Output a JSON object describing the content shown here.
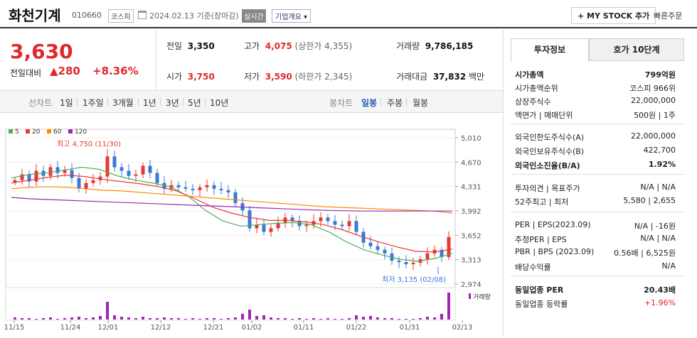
{
  "header": {
    "name": "화천기계",
    "code": "010660",
    "market": "코스피",
    "date": "2024.02.13",
    "basis": "기준(장마감)",
    "realtime": "실시간",
    "company_info": "기업개요 ▾",
    "mystock": "MY STOCK 추가",
    "quick_order": "빠른주문"
  },
  "price": {
    "current": "3,630",
    "change_label": "전일대비",
    "change_value": "▲280",
    "change_pct": "+8.36%",
    "prev_label": "전일",
    "prev": "3,350",
    "high_label": "고가",
    "high": "4,075",
    "upper_label": "(상한가 4,355)",
    "volume_label": "거래량",
    "volume": "9,786,185",
    "open_label": "시가",
    "open": "3,750",
    "low_label": "저가",
    "low": "3,590",
    "lower_label": "(하한가 2,345)",
    "amount_label": "거래대금",
    "amount": "37,832",
    "amount_unit": "백만"
  },
  "periods": {
    "line_label": "선차트",
    "items": [
      "1일",
      "1주일",
      "3개월",
      "1년",
      "3년",
      "5년",
      "10년"
    ],
    "candle_label": "봉차트",
    "candle_items": [
      "일봉",
      "주봉",
      "월봉"
    ]
  },
  "chart_data": {
    "type": "candlestick",
    "legend": [
      "5",
      "20",
      "60",
      "120"
    ],
    "legend_colors": [
      "#4caf50",
      "#e53935",
      "#fb8c00",
      "#9c27b0"
    ],
    "y_ticks": [
      "5,010",
      "4,670",
      "4,331",
      "3,992",
      "3,652",
      "3,313",
      "2,974"
    ],
    "y_range": [
      2974,
      5010
    ],
    "x_labels": [
      "11/15",
      "11/24",
      "12/01",
      "12/12",
      "12/21",
      "01/02",
      "01/11",
      "01/22",
      "01/31",
      "02/13"
    ],
    "high_note": "최고 4,750 (11/30)",
    "low_note": "최저 3,135 (02/08)",
    "volume_label": "거래량"
  },
  "panel": {
    "tab1": "투자정보",
    "tab2": "호가 10단계",
    "rows": [
      {
        "l": "시가총액",
        "v": "799억원",
        "bold": true
      },
      {
        "l": "시가총액순위",
        "v": "코스피 966위"
      },
      {
        "l": "상장주식수",
        "v": "22,000,000"
      },
      {
        "l": "액면가 | 매매단위",
        "v": "500원 | 1주"
      },
      {
        "l": "외국인한도주식수(A)",
        "v": "22,000,000"
      },
      {
        "l": "외국인보유주식수(B)",
        "v": "422,700"
      },
      {
        "l": "외국인소진율(B/A)",
        "v": "1.92%",
        "bold": true
      },
      {
        "l": "투자의견 | 목표주가",
        "v": "N/A | N/A"
      },
      {
        "l": "52주최고 | 최저",
        "v": "5,580 | 2,655"
      },
      {
        "l": "PER | EPS(2023.09)",
        "v": "N/A | -16원"
      },
      {
        "l": "추정PER | EPS",
        "v": "N/A | N/A"
      },
      {
        "l": "PBR | BPS (2023.09)",
        "v": "0.56배 | 6,525원"
      },
      {
        "l": "배당수익률",
        "v": "N/A"
      },
      {
        "l": "동일업종 PER",
        "v": "20.43배",
        "bold": true
      },
      {
        "l": "동일업종 등락률",
        "v": "+1.96%",
        "red": true
      }
    ]
  }
}
